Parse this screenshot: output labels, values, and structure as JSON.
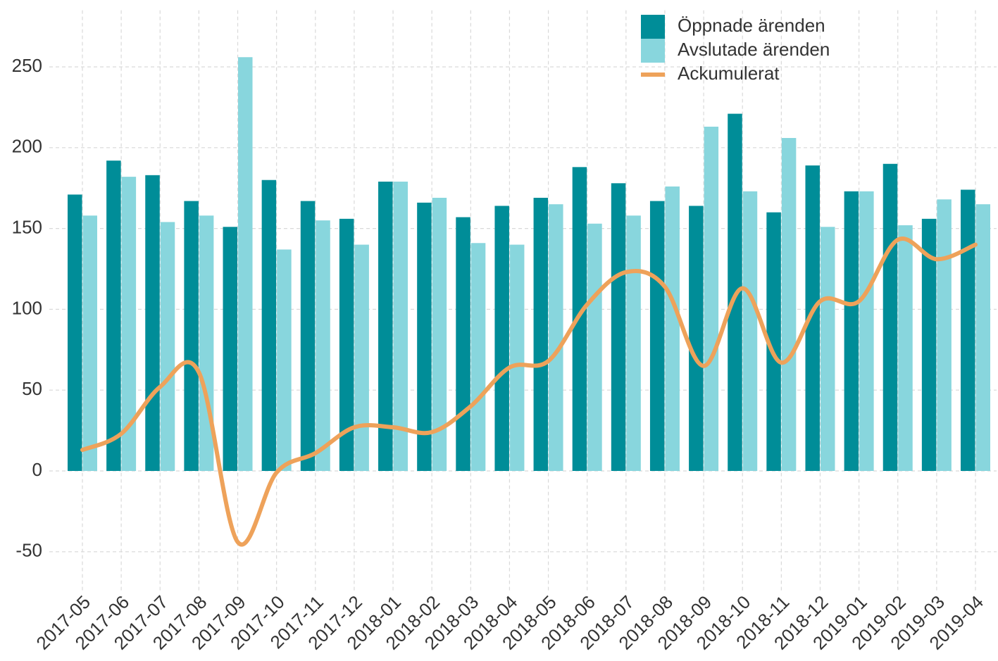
{
  "chart_data": {
    "type": "bar_line",
    "categories": [
      "2017-05",
      "2017-06",
      "2017-07",
      "2017-08",
      "2017-09",
      "2017-10",
      "2017-11",
      "2017-12",
      "2018-01",
      "2018-02",
      "2018-03",
      "2018-04",
      "2018-05",
      "2018-06",
      "2018-07",
      "2018-08",
      "2018-09",
      "2018-10",
      "2018-11",
      "2018-12",
      "2019-01",
      "2019-02",
      "2019-03",
      "2019-04"
    ],
    "series": [
      {
        "name": "Öppnade ärenden",
        "type": "bar",
        "color": "#008d98",
        "values": [
          171,
          192,
          183,
          167,
          151,
          180,
          167,
          156,
          179,
          166,
          157,
          164,
          169,
          188,
          178,
          167,
          164,
          221,
          160,
          189,
          173,
          190,
          156,
          174
        ]
      },
      {
        "name": "Avslutade ärenden",
        "type": "bar",
        "color": "#88d6dd",
        "values": [
          158,
          182,
          154,
          158,
          256,
          137,
          155,
          140,
          179,
          169,
          141,
          140,
          165,
          153,
          158,
          176,
          213,
          173,
          206,
          151,
          173,
          152,
          168,
          165
        ]
      },
      {
        "name": "Ackumulerat",
        "type": "line",
        "color": "#eea25a",
        "values": [
          13,
          23,
          52,
          61,
          -44,
          -1,
          11,
          27,
          27,
          24,
          40,
          64,
          68,
          103,
          123,
          114,
          65,
          113,
          67,
          105,
          105,
          143,
          131,
          140
        ]
      }
    ],
    "ylim": [
      -75,
      285
    ],
    "yticks": [
      -50,
      0,
      50,
      100,
      150,
      200,
      250
    ],
    "grid": true,
    "legend": "top-right"
  }
}
